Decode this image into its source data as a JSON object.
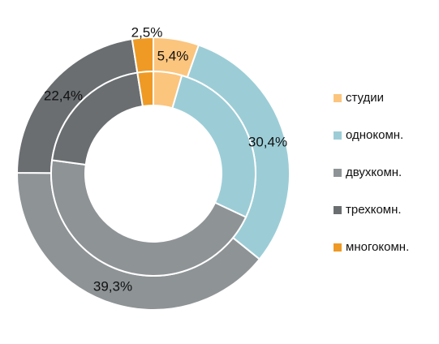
{
  "chart_data": {
    "type": "pie",
    "variant": "double-ring donut",
    "categories": [
      "студии",
      "однокомн.",
      "двухкомн.",
      "трехкомн.",
      "многокомн."
    ],
    "series": [
      {
        "ring": "outer",
        "values": [
          5.4,
          30.4,
          39.3,
          22.4,
          2.5
        ]
      },
      {
        "ring": "inner",
        "values": [
          4.5,
          27.5,
          45.1,
          20.4,
          2.5
        ]
      }
    ],
    "data_labels": [
      "5,4%",
      "30,4%",
      "39,3%",
      "22,4%",
      "2,5%"
    ],
    "colors": [
      "#FBC57E",
      "#9CCDD7",
      "#8E9396",
      "#6A6E71",
      "#EE9A25"
    ],
    "legend_position": "right",
    "start_angle": "12 o'clock, clockwise"
  }
}
